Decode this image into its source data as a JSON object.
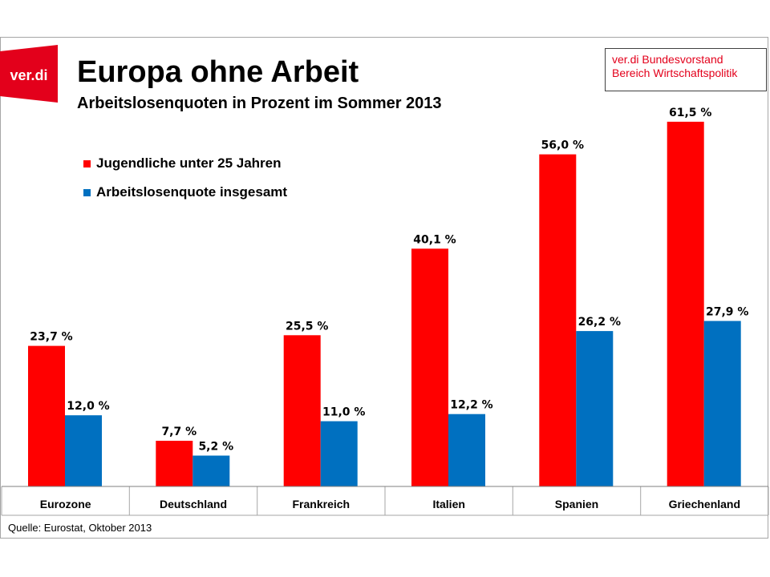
{
  "header": {
    "logo_text": "ver.di",
    "title": "Europa ohne Arbeit",
    "subtitle": "Arbeitslosenquoten in Prozent im Sommer 2013",
    "credit_line1": "ver.di Bundesvorstand",
    "credit_line2": "Bereich Wirtschaftspolitik"
  },
  "footer": {
    "source": "Quelle: Eurostat, Oktober 2013"
  },
  "colors": {
    "brand_red": "#e3001b",
    "series_red": "#ff0000",
    "series_blue": "#0070c0"
  },
  "chart_data": {
    "type": "bar",
    "categories": [
      "Eurozone",
      "Deutschland",
      "Frankreich",
      "Italien",
      "Spanien",
      "Griechenland"
    ],
    "series": [
      {
        "name": "Jugendliche unter 25 Jahren",
        "color": "#ff0000",
        "values": [
          23.7,
          7.7,
          25.5,
          40.1,
          56.0,
          61.5
        ],
        "labels": [
          "23,7 %",
          "7,7 %",
          "25,5 %",
          "40,1 %",
          "56,0 %",
          "61,5 %"
        ]
      },
      {
        "name": "Arbeitslosenquote insgesamt",
        "color": "#0070c0",
        "values": [
          12.0,
          5.2,
          11.0,
          12.2,
          26.2,
          27.9
        ],
        "labels": [
          "12,0 %",
          "5,2 %",
          "11,0 %",
          "12,2 %",
          "26,2 %",
          "27,9 %"
        ]
      }
    ],
    "ylim": [
      0,
      70
    ],
    "grid": false,
    "legend": "top-left"
  }
}
